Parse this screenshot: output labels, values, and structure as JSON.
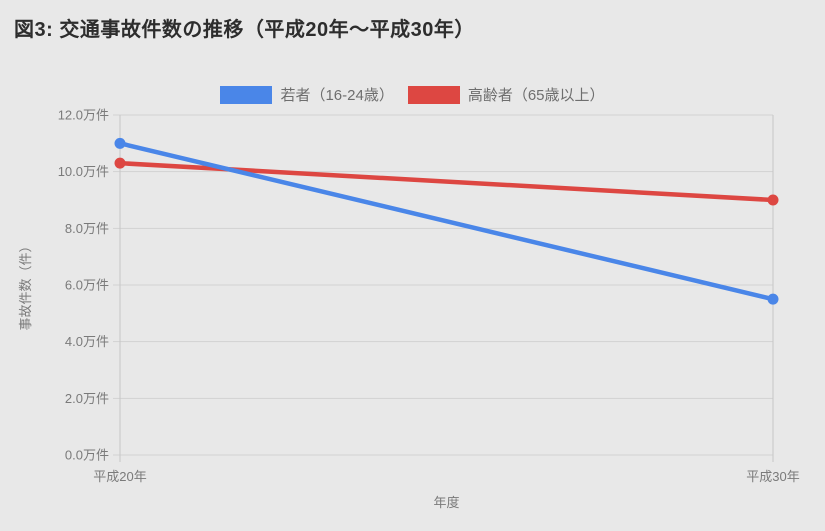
{
  "title": "図3: 交通事故件数の推移（平成20年～平成30年）",
  "colors": {
    "background": "#e8e8e8",
    "youth_series": "#4a86e8",
    "elderly_series": "#dd4742",
    "gridline": "#d2d2d2",
    "axis_line": "#c6c6c6",
    "muted_text": "#7a7a7a",
    "title_text": "#2d2d2d"
  },
  "legend": {
    "items": [
      {
        "label": "若者（16-24歳）",
        "color": "#4a86e8"
      },
      {
        "label": "高齢者（65歳以上）",
        "color": "#dd4742"
      }
    ]
  },
  "chart_data": {
    "type": "line",
    "title": "図3: 交通事故件数の推移（平成20年～平成30年）",
    "x": [
      "平成20年",
      "平成30年"
    ],
    "series": [
      {
        "name": "高齢者（65歳以上）",
        "values": [
          10.3,
          9.0
        ],
        "color": "#dd4742"
      },
      {
        "name": "若者（16-24歳）",
        "values": [
          11.0,
          5.5
        ],
        "color": "#4a86e8"
      }
    ],
    "xlabel": "年度",
    "ylabel": "事故件数（件）",
    "ylim": [
      0,
      12
    ],
    "ytick_step": 2,
    "ytick_labels": [
      "0.0万件",
      "2.0万件",
      "4.0万件",
      "6.0万件",
      "8.0万件",
      "10.0万件",
      "12.0万件"
    ],
    "unit": "万件",
    "grid": true,
    "legend_position": "top"
  }
}
